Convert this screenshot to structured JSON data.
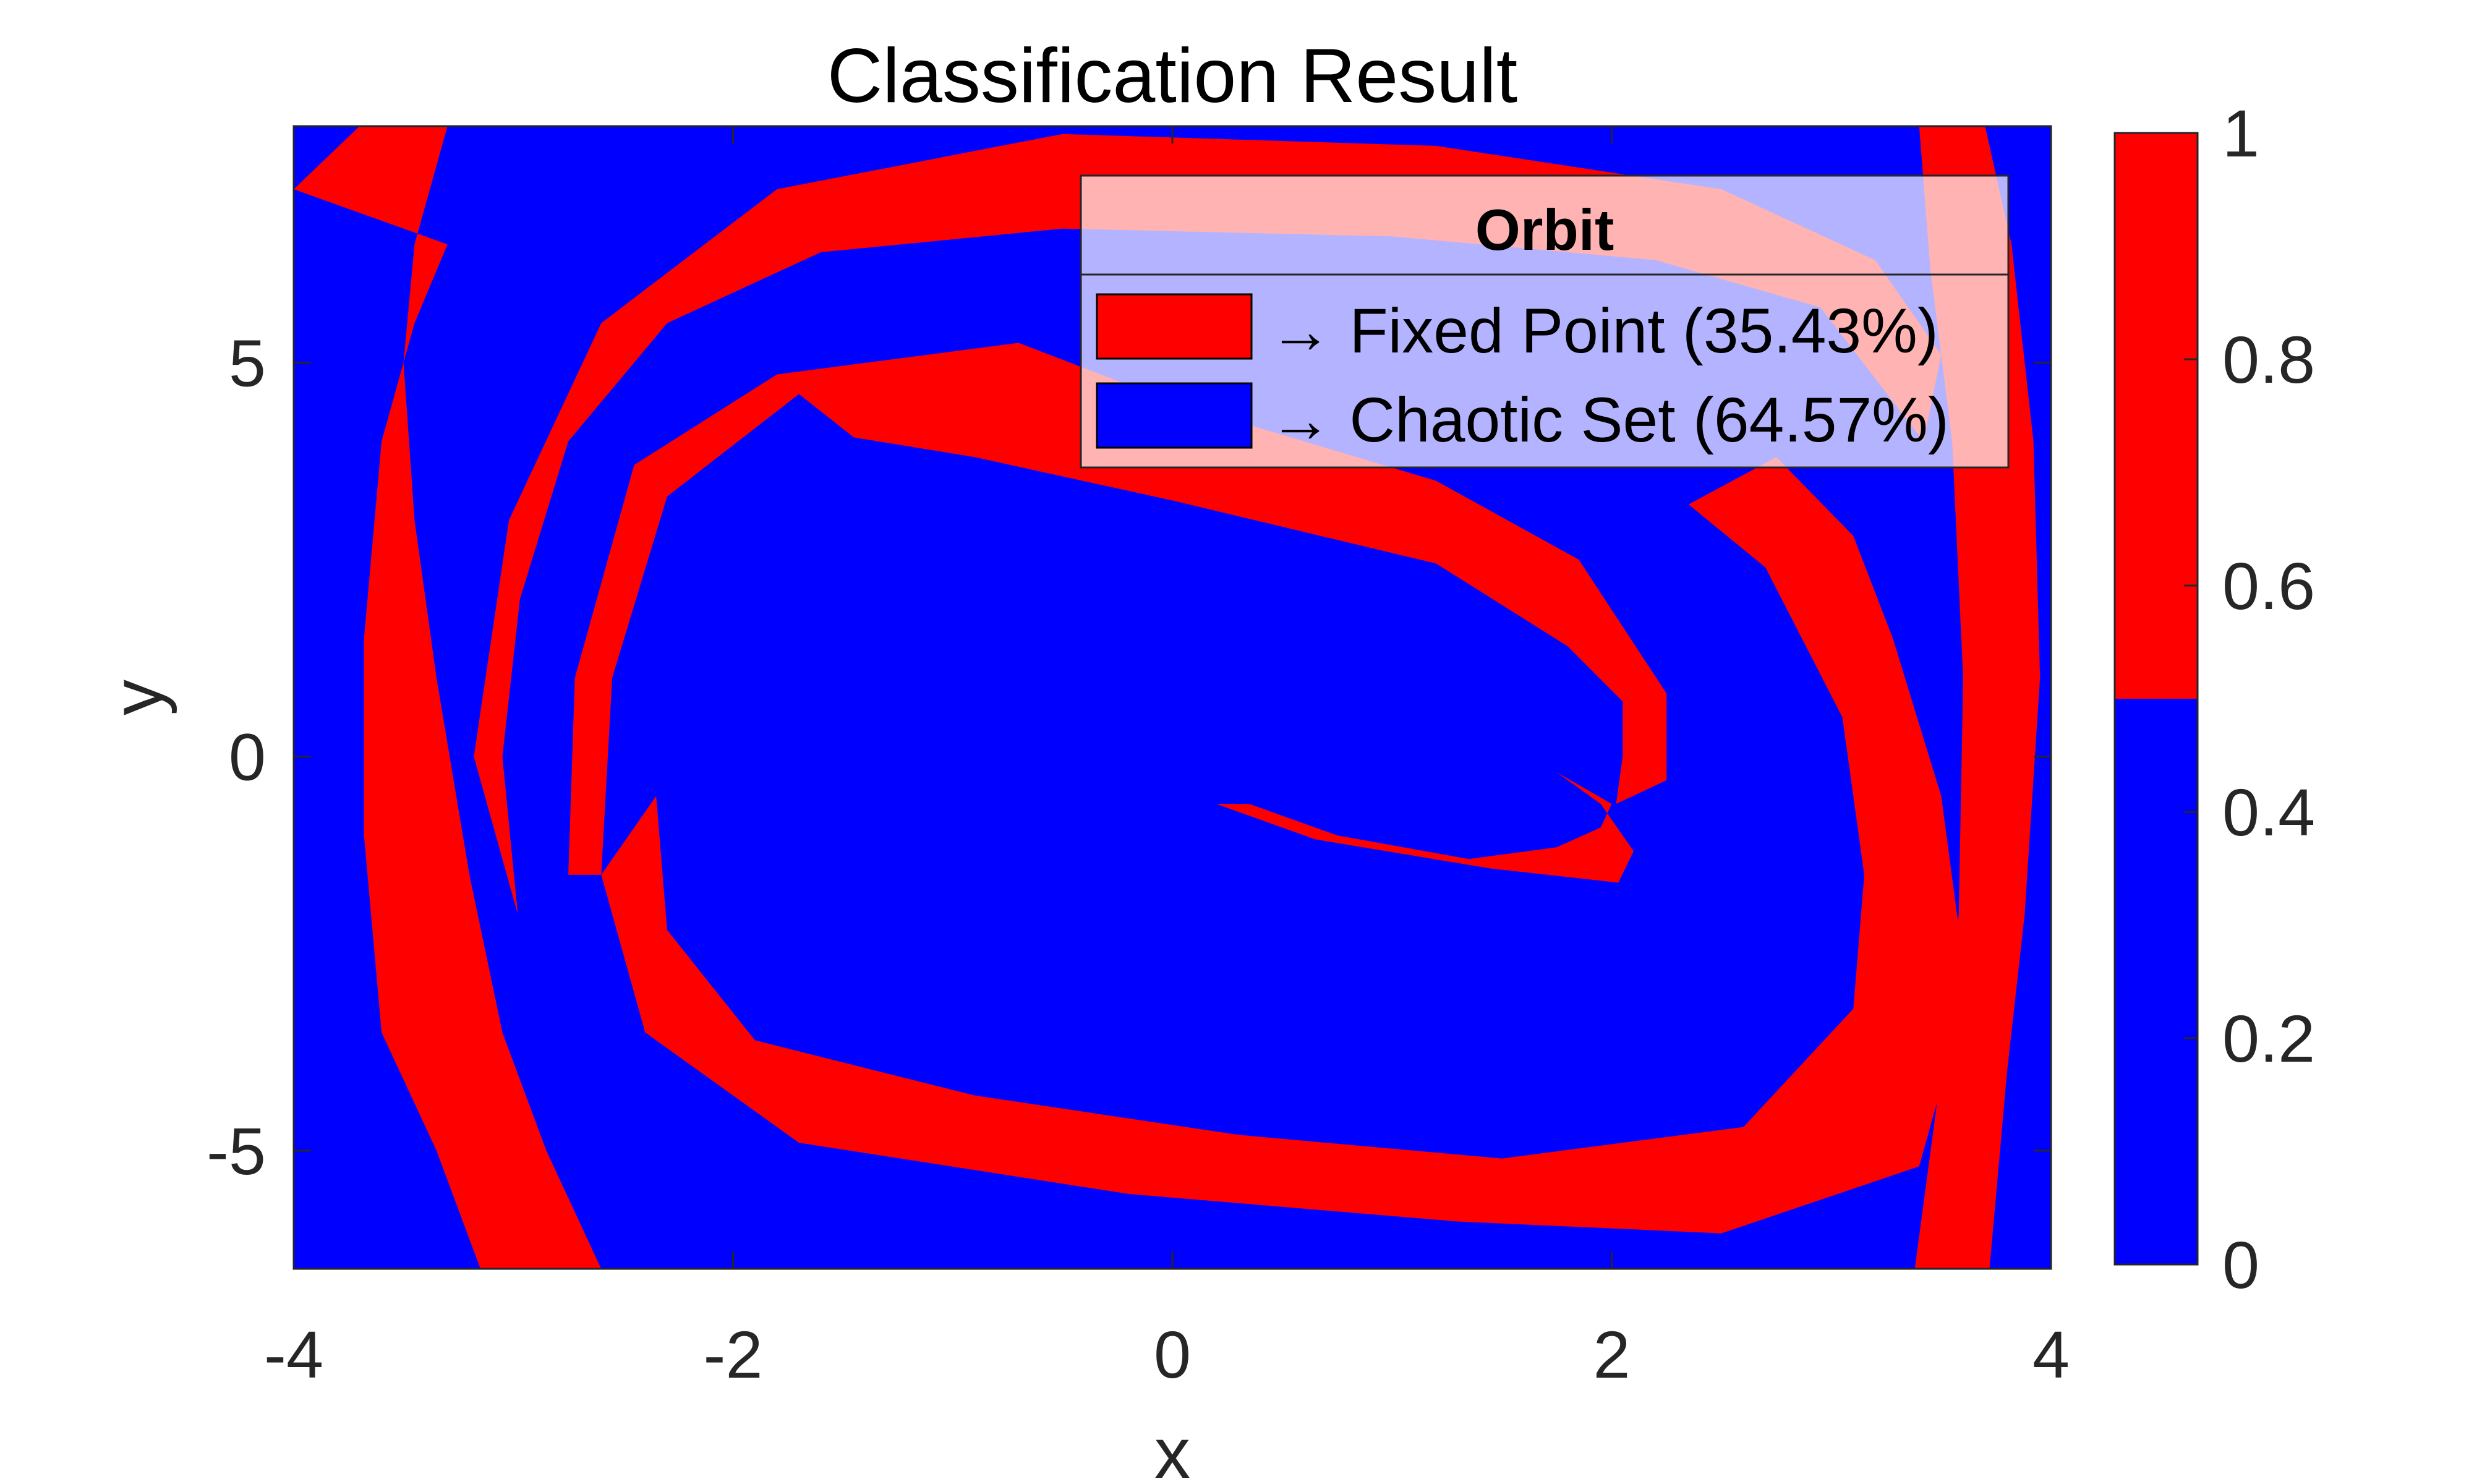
{
  "chart_data": {
    "type": "heatmap",
    "title": "Classification Result",
    "xlabel": "x",
    "ylabel": "y",
    "xlim": [
      -4,
      4
    ],
    "ylim": [
      -6.5,
      8
    ],
    "x_ticks": [
      {
        "value": -4,
        "label": "-4"
      },
      {
        "value": -2,
        "label": "-2"
      },
      {
        "value": 0,
        "label": "0"
      },
      {
        "value": 2,
        "label": "2"
      },
      {
        "value": 4,
        "label": "4"
      }
    ],
    "y_ticks": [
      {
        "value": -5,
        "label": "-5"
      },
      {
        "value": 0,
        "label": "0"
      },
      {
        "value": 5,
        "label": "5"
      }
    ],
    "classes": [
      {
        "value": 1,
        "label": "Fixed Point",
        "percent": 35.43,
        "color": "#ff0000"
      },
      {
        "value": 0,
        "label": "Chaotic Set",
        "percent": 64.57,
        "color": "#0000ff"
      }
    ],
    "legend": {
      "title": "Orbit",
      "placement": "top-right",
      "entries": [
        "→ Fixed Point (35.43%)",
        "→ Chaotic Set (64.57%)"
      ]
    },
    "colorbar": {
      "placement": "right",
      "range": [
        0,
        1
      ],
      "threshold": 0.5,
      "ticks": [
        {
          "value": 0,
          "label": "0"
        },
        {
          "value": 0.2,
          "label": "0.2"
        },
        {
          "value": 0.4,
          "label": "0.4"
        },
        {
          "value": 0.6,
          "label": "0.6"
        },
        {
          "value": 0.8,
          "label": "0.8"
        },
        {
          "value": 1,
          "label": "1"
        }
      ]
    },
    "fixed_point_regions": [
      {
        "name": "outer-band",
        "points": [
          [
            -4,
            7.2
          ],
          [
            -3.7,
            8
          ],
          [
            -3.3,
            8
          ],
          [
            -3.45,
            6.5
          ],
          [
            -3.5,
            5
          ],
          [
            -3.45,
            3
          ],
          [
            -3.35,
            1
          ],
          [
            -3.2,
            -1.5
          ],
          [
            -3.05,
            -3.5
          ],
          [
            -2.85,
            -5
          ],
          [
            -2.6,
            -6.5
          ],
          [
            -3.15,
            -6.5
          ],
          [
            -3.35,
            -5
          ],
          [
            -3.6,
            -3.5
          ],
          [
            -3.68,
            -1
          ],
          [
            -3.68,
            1.5
          ],
          [
            -3.6,
            4
          ],
          [
            -3.45,
            5.5
          ],
          [
            -3.3,
            6.5
          ]
        ]
      },
      {
        "name": "upper-swirl-band",
        "points": [
          [
            -3.18,
            0
          ],
          [
            -3.02,
            3
          ],
          [
            -2.6,
            5.5
          ],
          [
            -1.8,
            7.2
          ],
          [
            -0.5,
            7.9
          ],
          [
            1.2,
            7.75
          ],
          [
            2.5,
            7.2
          ],
          [
            3.2,
            6.3
          ],
          [
            3.5,
            5.1
          ],
          [
            3.42,
            4
          ],
          [
            2.95,
            5.7
          ],
          [
            2.2,
            6.3
          ],
          [
            1,
            6.6
          ],
          [
            -0.5,
            6.7
          ],
          [
            -1.6,
            6.4
          ],
          [
            -2.3,
            5.5
          ],
          [
            -2.75,
            4
          ],
          [
            -2.97,
            2
          ],
          [
            -3.05,
            0
          ],
          [
            -2.98,
            -2
          ]
        ]
      },
      {
        "name": "right-arc",
        "points": [
          [
            3.4,
            8
          ],
          [
            3.7,
            8
          ],
          [
            3.82,
            6.5
          ],
          [
            3.92,
            4
          ],
          [
            3.95,
            1
          ],
          [
            3.88,
            -2
          ],
          [
            3.8,
            -4
          ],
          [
            3.72,
            -6.5
          ],
          [
            3.38,
            -6.5
          ],
          [
            3.5,
            -4
          ],
          [
            3.58,
            -2
          ],
          [
            3.6,
            1
          ],
          [
            3.55,
            4
          ],
          [
            3.45,
            6.2
          ]
        ]
      },
      {
        "name": "central-band",
        "points": [
          [
            -2.6,
            -1.5
          ],
          [
            -2.55,
            1
          ],
          [
            -2.3,
            3.3
          ],
          [
            -1.7,
            4.6
          ],
          [
            -1.45,
            4.05
          ],
          [
            -0.9,
            3.8
          ],
          [
            0,
            3.25
          ],
          [
            1.2,
            2.45
          ],
          [
            1.8,
            1.4
          ],
          [
            2.05,
            0.7
          ],
          [
            2.05,
            0
          ],
          [
            2.02,
            -0.6
          ],
          [
            2.25,
            -0.3
          ],
          [
            2.25,
            0.8
          ],
          [
            1.85,
            2.5
          ],
          [
            1.2,
            3.5
          ],
          [
            0,
            4.5
          ],
          [
            -0.7,
            5.25
          ],
          [
            -1.8,
            4.85
          ],
          [
            -2.45,
            3.7
          ],
          [
            -2.72,
            1
          ],
          [
            -2.75,
            -1.5
          ]
        ]
      },
      {
        "name": "lower-band",
        "points": [
          [
            -2.6,
            -1.5
          ],
          [
            -2.4,
            -3.5
          ],
          [
            -1.7,
            -4.9
          ],
          [
            -0.2,
            -5.55
          ],
          [
            1.3,
            -5.9
          ],
          [
            2.5,
            -6.05
          ],
          [
            3.4,
            -5.2
          ],
          [
            3.62,
            -3
          ],
          [
            3.5,
            -0.5
          ],
          [
            3.28,
            1.5
          ],
          [
            3.1,
            2.8
          ],
          [
            2.75,
            3.8
          ],
          [
            2.35,
            3.2
          ],
          [
            2.7,
            2.4
          ],
          [
            3.05,
            0.5
          ],
          [
            3.15,
            -1.5
          ],
          [
            3.1,
            -3.2
          ],
          [
            2.6,
            -4.7
          ],
          [
            1.5,
            -5.1
          ],
          [
            0.3,
            -4.8
          ],
          [
            -0.9,
            -4.3
          ],
          [
            -1.9,
            -3.6
          ],
          [
            -2.3,
            -2.2
          ],
          [
            -2.35,
            -0.5
          ]
        ]
      },
      {
        "name": "inner-hook",
        "points": [
          [
            1.75,
            -0.2
          ],
          [
            1.95,
            -0.6
          ],
          [
            2.1,
            -1.2
          ],
          [
            2.03,
            -1.6
          ],
          [
            1.45,
            -1.42
          ],
          [
            0.65,
            -1.05
          ],
          [
            0.2,
            -0.6
          ],
          [
            0.35,
            -0.6
          ],
          [
            0.75,
            -1
          ],
          [
            1.35,
            -1.3
          ],
          [
            1.75,
            -1.15
          ],
          [
            1.95,
            -0.9
          ],
          [
            2.0,
            -0.6
          ]
        ]
      }
    ]
  }
}
